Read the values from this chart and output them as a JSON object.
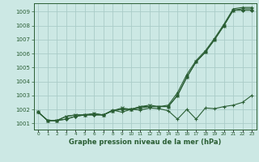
{
  "x": [
    0,
    1,
    2,
    3,
    4,
    5,
    6,
    7,
    8,
    9,
    10,
    11,
    12,
    13,
    14,
    15,
    16,
    17,
    18,
    19,
    20,
    21,
    22,
    23
  ],
  "line1": [
    1001.8,
    1001.2,
    1001.2,
    1001.3,
    1001.5,
    1001.6,
    1001.6,
    1001.6,
    1001.9,
    1002.0,
    1002.0,
    1002.1,
    1002.2,
    1002.2,
    1002.2,
    1003.0,
    1004.3,
    1005.4,
    1006.1,
    1007.0,
    1008.0,
    1009.1,
    1009.1,
    1009.1
  ],
  "line2": [
    1001.8,
    1001.2,
    1001.2,
    1001.3,
    1001.5,
    1001.6,
    1001.6,
    1001.6,
    1001.95,
    1001.8,
    1002.0,
    1001.95,
    1002.1,
    1002.05,
    1001.9,
    1001.3,
    1002.0,
    1001.3,
    1002.1,
    1002.05,
    1002.2,
    1002.3,
    1002.5,
    1003.0
  ],
  "line3": [
    1001.8,
    1001.2,
    1001.2,
    1001.5,
    1001.6,
    1001.6,
    1001.7,
    1001.6,
    1001.9,
    1002.0,
    1002.0,
    1002.2,
    1002.2,
    1002.2,
    1002.3,
    1003.2,
    1004.5,
    1005.5,
    1006.2,
    1007.1,
    1008.1,
    1009.2,
    1009.3,
    1009.3
  ],
  "line4": [
    1001.8,
    1001.2,
    1001.2,
    1001.5,
    1001.6,
    1001.6,
    1001.7,
    1001.6,
    1001.9,
    1002.1,
    1002.0,
    1002.2,
    1002.3,
    1002.2,
    1002.2,
    1003.0,
    1004.3,
    1005.4,
    1006.1,
    1007.0,
    1008.0,
    1009.1,
    1009.2,
    1009.2
  ],
  "title": "Graphe pression niveau de la mer (hPa)",
  "ylabel_ticks": [
    1001,
    1002,
    1003,
    1004,
    1005,
    1006,
    1007,
    1008,
    1009
  ],
  "ylim": [
    1000.55,
    1009.6
  ],
  "xlim": [
    -0.5,
    23.5
  ],
  "bg_color": "#cce8e4",
  "grid_color": "#aaccc8",
  "line_color_hex": "#2a5e34",
  "xtick_labels": [
    "0",
    "1",
    "2",
    "3",
    "4",
    "5",
    "6",
    "7",
    "8",
    "9",
    "10",
    "11",
    "12",
    "13",
    "14",
    "15",
    "16",
    "17",
    "18",
    "19",
    "20",
    "21",
    "22",
    "23"
  ]
}
